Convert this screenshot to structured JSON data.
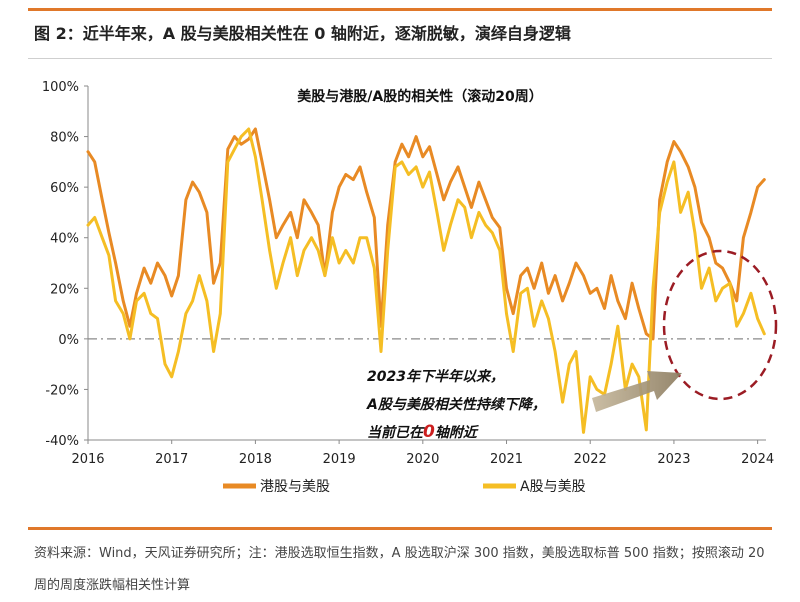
{
  "figure_title": "图 2：近半年来，A 股与美股相关性在 0 轴附近，逐渐脱敏，演绎自身逻辑",
  "source_note": "资料来源：Wind，天风证券研究所；注：港股选取恒生指数，A 股选取沪深 300 指数，美股选取标普 500 指数；按照滚动 20 周的周度涨跌幅相关性计算",
  "colors": {
    "hk": "#e88a24",
    "a": "#f5be24",
    "accent": "#e0782a",
    "annotation_highlight": "#cc1f1f",
    "ellipse": "#9b1c24",
    "arrow": "#a89a80"
  },
  "chart_data": {
    "type": "line",
    "title": "美股与港股/A股的相关性（滚动20周）",
    "xlabel": "",
    "ylabel": "",
    "x_ticks": [
      "2016",
      "2017",
      "2018",
      "2019",
      "2020",
      "2021",
      "2022",
      "2023",
      "2024"
    ],
    "y_ticks": [
      "100%",
      "80%",
      "60%",
      "40%",
      "20%",
      "0%",
      "-20%",
      "-40%"
    ],
    "xlim": [
      2016.0,
      2024.1
    ],
    "ylim": [
      -0.4,
      1.0
    ],
    "grid": false,
    "reference_line": 0,
    "legend_position": "bottom",
    "series": [
      {
        "name": "港股与美股",
        "color": "#e88a24",
        "x": [
          2016.0,
          2016.08,
          2016.17,
          2016.25,
          2016.33,
          2016.42,
          2016.5,
          2016.58,
          2016.67,
          2016.75,
          2016.83,
          2016.92,
          2017.0,
          2017.08,
          2017.17,
          2017.25,
          2017.33,
          2017.42,
          2017.5,
          2017.58,
          2017.67,
          2017.75,
          2017.83,
          2017.92,
          2018.0,
          2018.08,
          2018.17,
          2018.25,
          2018.33,
          2018.42,
          2018.5,
          2018.58,
          2018.67,
          2018.75,
          2018.83,
          2018.92,
          2019.0,
          2019.08,
          2019.17,
          2019.25,
          2019.33,
          2019.42,
          2019.5,
          2019.58,
          2019.67,
          2019.75,
          2019.83,
          2019.92,
          2020.0,
          2020.08,
          2020.17,
          2020.25,
          2020.33,
          2020.42,
          2020.5,
          2020.58,
          2020.67,
          2020.75,
          2020.83,
          2020.92,
          2021.0,
          2021.08,
          2021.17,
          2021.25,
          2021.33,
          2021.42,
          2021.5,
          2021.58,
          2021.67,
          2021.75,
          2021.83,
          2021.92,
          2022.0,
          2022.08,
          2022.17,
          2022.25,
          2022.33,
          2022.42,
          2022.5,
          2022.58,
          2022.67,
          2022.75,
          2022.83,
          2022.92,
          2023.0,
          2023.08,
          2023.17,
          2023.25,
          2023.33,
          2023.42,
          2023.5,
          2023.58,
          2023.67,
          2023.75,
          2023.83,
          2023.92,
          2024.0,
          2024.08
        ],
        "values": [
          0.74,
          0.7,
          0.55,
          0.42,
          0.3,
          0.15,
          0.05,
          0.18,
          0.28,
          0.22,
          0.3,
          0.25,
          0.17,
          0.25,
          0.55,
          0.62,
          0.58,
          0.5,
          0.22,
          0.3,
          0.75,
          0.8,
          0.77,
          0.79,
          0.83,
          0.7,
          0.55,
          0.4,
          0.45,
          0.5,
          0.4,
          0.55,
          0.5,
          0.45,
          0.25,
          0.5,
          0.6,
          0.65,
          0.63,
          0.68,
          0.58,
          0.48,
          0.05,
          0.45,
          0.7,
          0.77,
          0.72,
          0.8,
          0.72,
          0.76,
          0.65,
          0.55,
          0.62,
          0.68,
          0.6,
          0.52,
          0.62,
          0.55,
          0.48,
          0.44,
          0.2,
          0.1,
          0.25,
          0.28,
          0.2,
          0.3,
          0.18,
          0.25,
          0.15,
          0.22,
          0.3,
          0.25,
          0.18,
          0.2,
          0.12,
          0.25,
          0.15,
          0.08,
          0.22,
          0.12,
          0.02,
          0.0,
          0.55,
          0.7,
          0.78,
          0.74,
          0.68,
          0.6,
          0.46,
          0.4,
          0.3,
          0.28,
          0.22,
          0.15,
          0.4,
          0.5,
          0.6,
          0.63
        ]
      },
      {
        "name": "A股与美股",
        "color": "#f5be24",
        "x": [
          2016.0,
          2016.08,
          2016.17,
          2016.25,
          2016.33,
          2016.42,
          2016.5,
          2016.58,
          2016.67,
          2016.75,
          2016.83,
          2016.92,
          2017.0,
          2017.08,
          2017.17,
          2017.25,
          2017.33,
          2017.42,
          2017.5,
          2017.58,
          2017.67,
          2017.75,
          2017.83,
          2017.92,
          2018.0,
          2018.08,
          2018.17,
          2018.25,
          2018.33,
          2018.42,
          2018.5,
          2018.58,
          2018.67,
          2018.75,
          2018.83,
          2018.92,
          2019.0,
          2019.08,
          2019.17,
          2019.25,
          2019.33,
          2019.42,
          2019.5,
          2019.58,
          2019.67,
          2019.75,
          2019.83,
          2019.92,
          2020.0,
          2020.08,
          2020.17,
          2020.25,
          2020.33,
          2020.42,
          2020.5,
          2020.58,
          2020.67,
          2020.75,
          2020.83,
          2020.92,
          2021.0,
          2021.08,
          2021.17,
          2021.25,
          2021.33,
          2021.42,
          2021.5,
          2021.58,
          2021.67,
          2021.75,
          2021.83,
          2021.92,
          2022.0,
          2022.08,
          2022.17,
          2022.25,
          2022.33,
          2022.42,
          2022.5,
          2022.58,
          2022.67,
          2022.75,
          2022.83,
          2022.92,
          2023.0,
          2023.08,
          2023.17,
          2023.25,
          2023.33,
          2023.42,
          2023.5,
          2023.58,
          2023.67,
          2023.75,
          2023.83,
          2023.92,
          2024.0,
          2024.08
        ],
        "values": [
          0.45,
          0.48,
          0.4,
          0.33,
          0.15,
          0.1,
          0.0,
          0.15,
          0.18,
          0.1,
          0.08,
          -0.1,
          -0.15,
          -0.05,
          0.1,
          0.15,
          0.25,
          0.15,
          -0.05,
          0.1,
          0.7,
          0.75,
          0.8,
          0.83,
          0.72,
          0.55,
          0.35,
          0.2,
          0.3,
          0.4,
          0.25,
          0.35,
          0.4,
          0.35,
          0.25,
          0.4,
          0.3,
          0.35,
          0.3,
          0.4,
          0.4,
          0.28,
          -0.05,
          0.35,
          0.68,
          0.7,
          0.65,
          0.68,
          0.6,
          0.66,
          0.5,
          0.35,
          0.45,
          0.55,
          0.52,
          0.4,
          0.5,
          0.45,
          0.42,
          0.35,
          0.1,
          -0.05,
          0.18,
          0.2,
          0.05,
          0.15,
          0.08,
          -0.05,
          -0.25,
          -0.1,
          -0.05,
          -0.37,
          -0.15,
          -0.2,
          -0.22,
          -0.1,
          0.05,
          -0.2,
          -0.1,
          -0.15,
          -0.36,
          0.2,
          0.5,
          0.62,
          0.7,
          0.5,
          0.58,
          0.42,
          0.2,
          0.28,
          0.15,
          0.2,
          0.22,
          0.05,
          0.1,
          0.18,
          0.08,
          0.02
        ]
      }
    ],
    "annotation": {
      "line1": "2023年下半年以来，",
      "line2": "A股与美股相关性持续下降，",
      "line3_prefix": "当前已在",
      "line3_highlight": "0",
      "line3_suffix": "轴附近"
    }
  }
}
